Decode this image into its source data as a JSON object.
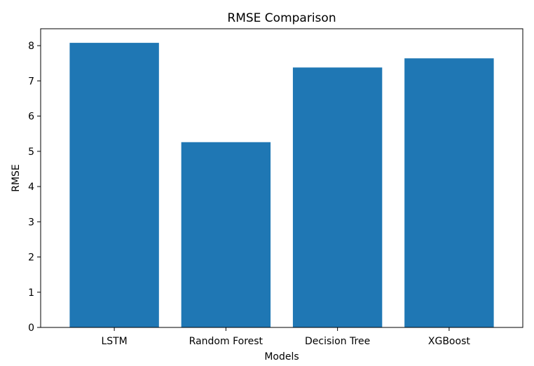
{
  "chart_data": {
    "type": "bar",
    "title": "RMSE Comparison",
    "xlabel": "Models",
    "ylabel": "RMSE",
    "categories": [
      "LSTM",
      "Random Forest",
      "Decision Tree",
      "XGBoost"
    ],
    "values": [
      8.08,
      5.26,
      7.38,
      7.64
    ],
    "ylim": [
      0,
      8.48
    ],
    "yticks": [
      "0",
      "1",
      "2",
      "3",
      "4",
      "5",
      "6",
      "7",
      "8"
    ],
    "bar_color": "#1f77b4",
    "grid": false,
    "legend": "none"
  }
}
